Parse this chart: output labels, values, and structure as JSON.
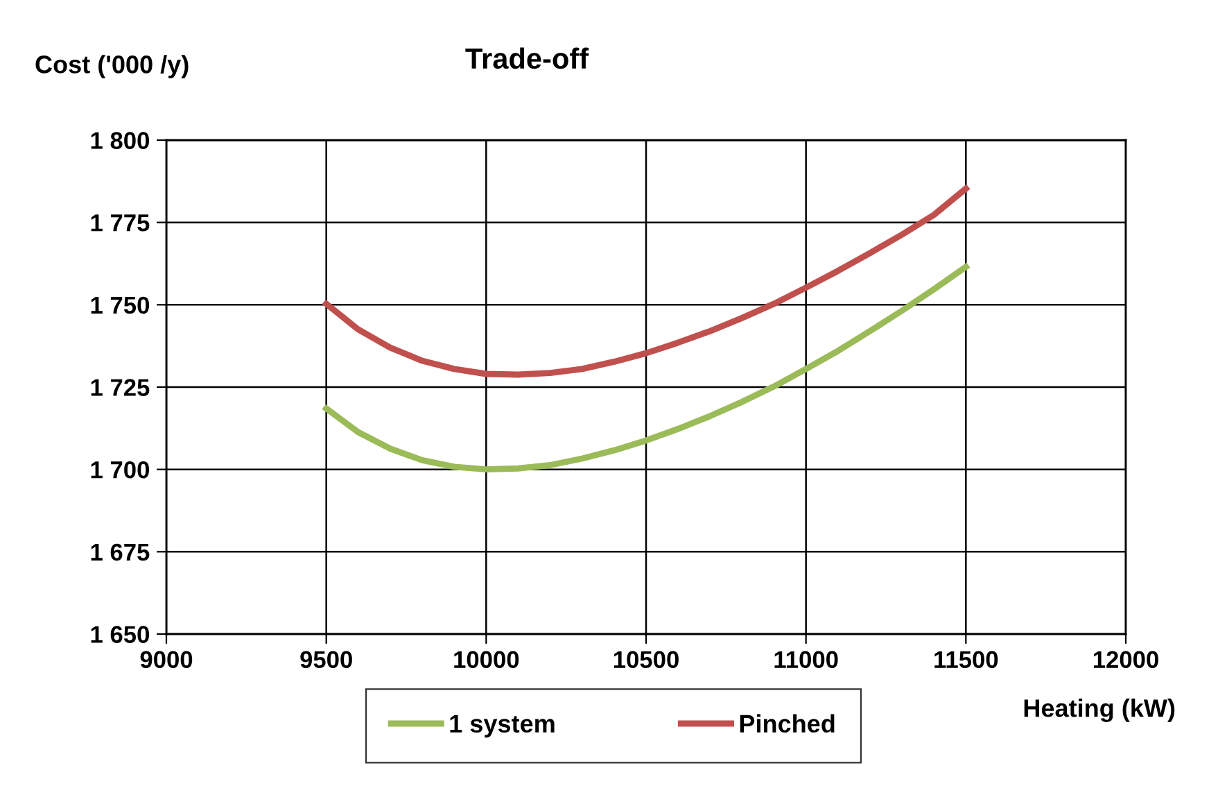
{
  "chart_data": {
    "type": "line",
    "title": "Trade-off",
    "xlabel": "Heating (kW)",
    "ylabel": "Cost ('000 /y)",
    "x": [
      9500,
      9600,
      9700,
      9800,
      9900,
      10000,
      10100,
      10200,
      10300,
      10400,
      10500,
      10600,
      10700,
      10800,
      10900,
      11000,
      11100,
      11200,
      11300,
      11400,
      11500
    ],
    "series": [
      {
        "name": "1 system",
        "color": "#9bbb59",
        "values": [
          1718.5,
          1711.3,
          1706.3,
          1702.8,
          1700.8,
          1700,
          1700.3,
          1701.3,
          1703.3,
          1705.8,
          1708.8,
          1712.3,
          1716.2,
          1720.5,
          1725.2,
          1730.5,
          1736,
          1742,
          1748.2,
          1754.7,
          1761.5
        ]
      },
      {
        "name": "Pinched",
        "color": "#c0504d",
        "values": [
          1750.3,
          1742.5,
          1737,
          1733,
          1730.5,
          1729,
          1728.8,
          1729.3,
          1730.5,
          1732.7,
          1735.3,
          1738.5,
          1742,
          1746,
          1750.3,
          1755.2,
          1760.3,
          1765.7,
          1771.3,
          1777.3,
          1785.3
        ]
      }
    ],
    "xlim": [
      9000,
      12000
    ],
    "xticks": [
      9000,
      9500,
      10000,
      10500,
      11000,
      11500,
      12000
    ],
    "ylim": [
      1650,
      1800
    ],
    "yticks": [
      {
        "value": 1650,
        "label": "1 650"
      },
      {
        "value": 1675,
        "label": "1 675"
      },
      {
        "value": 1700,
        "label": "1 700"
      },
      {
        "value": 1725,
        "label": "1 725"
      },
      {
        "value": 1750,
        "label": "1 750"
      },
      {
        "value": 1775,
        "label": "1 775"
      },
      {
        "value": 1800,
        "label": "1 800"
      }
    ],
    "grid": true,
    "legend": "bottom",
    "marker": "none",
    "line_style": "solid"
  }
}
